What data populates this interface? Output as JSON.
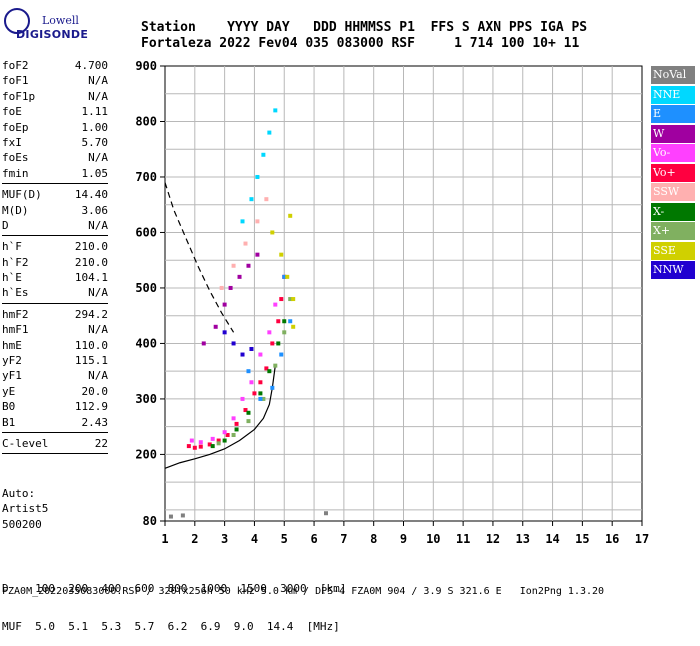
{
  "logo": {
    "line1": "Lowell",
    "line2": "DIGISONDE"
  },
  "header": {
    "line1": "Station    YYYY DAY   DDD HHMMSS P1  FFS S AXN PPS IGA PS",
    "line2": "Fortaleza 2022 Fev04 035 083000 RSF     1 714 100 10+ 11"
  },
  "params": [
    {
      "label": "foF2",
      "value": "4.700"
    },
    {
      "label": "foF1",
      "value": "N/A"
    },
    {
      "label": "foF1p",
      "value": "N/A"
    },
    {
      "label": "foE",
      "value": "1.11"
    },
    {
      "label": "foEp",
      "value": "1.00"
    },
    {
      "label": "fxI",
      "value": "5.70"
    },
    {
      "label": "foEs",
      "value": "N/A"
    },
    {
      "label": "fmin",
      "value": "1.05"
    },
    {
      "sep": true
    },
    {
      "label": "MUF(D)",
      "value": "14.40"
    },
    {
      "label": "M(D)",
      "value": "3.06"
    },
    {
      "label": "D",
      "value": "N/A"
    },
    {
      "sep": true
    },
    {
      "label": "h`F",
      "value": "210.0"
    },
    {
      "label": "h`F2",
      "value": "210.0"
    },
    {
      "label": "h`E",
      "value": "104.1"
    },
    {
      "label": "h`Es",
      "value": "N/A"
    },
    {
      "sep": true
    },
    {
      "label": "hmF2",
      "value": "294.2"
    },
    {
      "label": "hmF1",
      "value": "N/A"
    },
    {
      "label": "hmE",
      "value": "110.0"
    },
    {
      "label": "yF2",
      "value": "115.1"
    },
    {
      "label": "yF1",
      "value": "N/A"
    },
    {
      "label": "yE",
      "value": "20.0"
    },
    {
      "label": "B0",
      "value": "112.9"
    },
    {
      "label": "B1",
      "value": "2.43"
    },
    {
      "sep": true
    },
    {
      "label": "C-level",
      "value": "22"
    },
    {
      "sep": true
    }
  ],
  "auto": {
    "line1": "Auto:",
    "line2": "Artist5",
    "line3": "500200"
  },
  "legend": [
    {
      "label": "NoVal",
      "color": "#808080"
    },
    {
      "label": "NNE",
      "color": "#00d8ff"
    },
    {
      "label": "E",
      "color": "#1e90ff"
    },
    {
      "label": "W",
      "color": "#a000a0"
    },
    {
      "label": "Vo-",
      "color": "#ff40ff"
    },
    {
      "label": "Vo+",
      "color": "#ff0040"
    },
    {
      "label": "SSW",
      "color": "#ffb0b0"
    },
    {
      "label": "X-",
      "color": "#007800"
    },
    {
      "label": "X+",
      "color": "#80b060"
    },
    {
      "label": "SSE",
      "color": "#d0d000"
    },
    {
      "label": "NNW",
      "color": "#2000d0"
    }
  ],
  "footer": {
    "line1": "D    100  200  400  600  800  1000  1500  3000  [km]",
    "line2": "MUF  5.0  5.1  5.3  5.7  6.2  6.9  9.0  14.4  [MHz]",
    "credit": "FZA0M_2022035083000.RSF / 320fx256h 50 kHz 5.0 km / DPS-4 FZA0M 904 / 3.9 S 321.6 E   Ion2Png 1.3.20"
  },
  "chart_data": {
    "type": "scatter",
    "title": "",
    "xlabel": "",
    "ylabel": "",
    "xlim": [
      1,
      17
    ],
    "ylim": [
      80,
      900
    ],
    "x_ticks": [
      1,
      2,
      3,
      4,
      5,
      6,
      7,
      8,
      9,
      10,
      11,
      12,
      13,
      14,
      15,
      16,
      17
    ],
    "y_ticks": [
      80,
      200,
      300,
      400,
      500,
      600,
      700,
      800,
      900
    ],
    "grid": true,
    "profile_curve": {
      "name": "",
      "x": [
        1.0,
        1.5,
        2.0,
        2.5,
        3.0,
        3.5,
        4.0,
        4.3,
        4.5,
        4.6,
        4.7
      ],
      "y": [
        175,
        185,
        192,
        200,
        210,
        225,
        245,
        265,
        290,
        320,
        360
      ]
    },
    "dashed_curve": {
      "name": "",
      "x": [
        1.0,
        1.3,
        1.7,
        2.1,
        2.5,
        2.9,
        3.3
      ],
      "y": [
        690,
        640,
        590,
        540,
        495,
        455,
        420
      ]
    },
    "series": [
      {
        "name": "Vo+",
        "x": [
          1.8,
          2.0,
          2.2,
          2.5,
          2.8,
          3.1,
          3.4,
          3.7,
          4.0,
          4.2,
          4.4,
          4.6,
          4.8,
          4.9,
          5.0
        ],
        "y": [
          215,
          212,
          214,
          218,
          225,
          235,
          255,
          280,
          310,
          330,
          355,
          400,
          440,
          480,
          520
        ]
      },
      {
        "name": "Vo-",
        "x": [
          1.9,
          2.2,
          2.6,
          3.0,
          3.3,
          3.6,
          3.9,
          4.2,
          4.5,
          4.7
        ],
        "y": [
          225,
          222,
          228,
          240,
          265,
          300,
          330,
          380,
          420,
          470
        ]
      },
      {
        "name": "X-",
        "x": [
          2.6,
          3.0,
          3.4,
          3.8,
          4.2,
          4.5,
          4.8,
          5.0
        ],
        "y": [
          215,
          225,
          245,
          275,
          310,
          350,
          400,
          440
        ]
      },
      {
        "name": "X+",
        "x": [
          2.8,
          3.3,
          3.8,
          4.3,
          4.7,
          5.0,
          5.2
        ],
        "y": [
          220,
          235,
          260,
          300,
          360,
          420,
          480
        ]
      },
      {
        "name": "E",
        "x": [
          3.8,
          4.2,
          4.6,
          4.9,
          5.2,
          5.0
        ],
        "y": [
          350,
          300,
          320,
          380,
          440,
          520
        ]
      },
      {
        "name": "SSE",
        "x": [
          4.6,
          4.9,
          5.1,
          5.3,
          5.3,
          5.2
        ],
        "y": [
          600,
          560,
          520,
          480,
          430,
          630
        ]
      },
      {
        "name": "W",
        "x": [
          2.3,
          2.7,
          3.0,
          3.2,
          3.5,
          3.8,
          4.1
        ],
        "y": [
          400,
          430,
          470,
          500,
          520,
          540,
          560
        ]
      },
      {
        "name": "NNE",
        "x": [
          3.6,
          3.9,
          4.1,
          4.3,
          4.5,
          4.7
        ],
        "y": [
          620,
          660,
          700,
          740,
          780,
          820
        ]
      },
      {
        "name": "NNW",
        "x": [
          3.0,
          3.3,
          3.6,
          3.9
        ],
        "y": [
          420,
          400,
          380,
          390
        ]
      },
      {
        "name": "SSW",
        "x": [
          2.9,
          3.3,
          3.7,
          4.1,
          4.4
        ],
        "y": [
          500,
          540,
          580,
          620,
          660
        ]
      },
      {
        "name": "NoVal",
        "x": [
          1.2,
          1.6,
          6.4
        ],
        "y": [
          88,
          90,
          94
        ]
      }
    ]
  }
}
